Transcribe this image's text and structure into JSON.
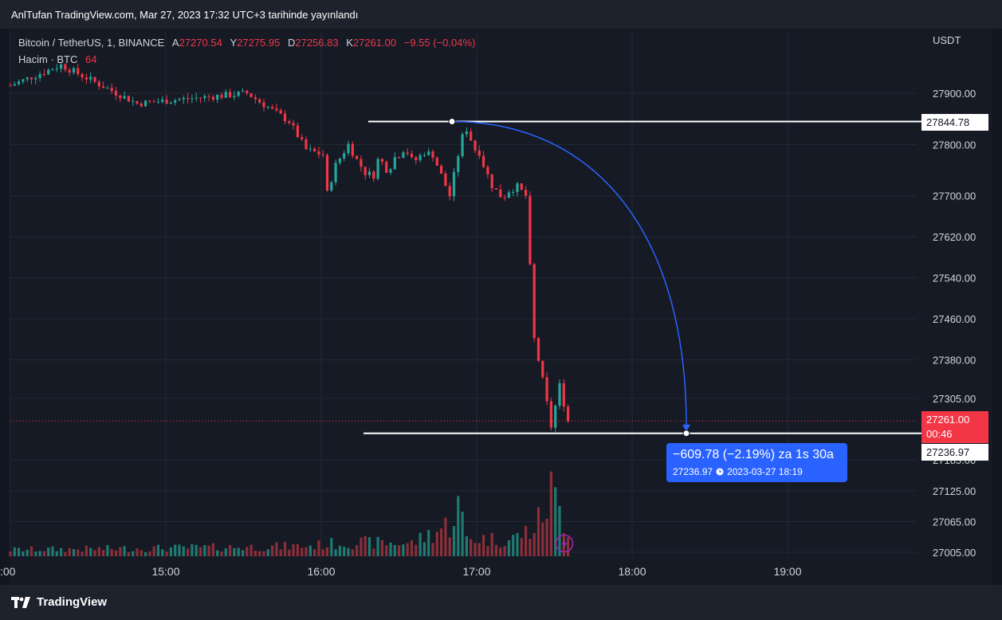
{
  "header": {
    "text": "AnlTufan TradingView.com, Mar 27, 2023 17:32 UTC+3 tarihinde yayınlandı"
  },
  "legend": {
    "symbol": "Bitcoin / TetherUS, 1, BINANCE",
    "open_label": "A",
    "open": "27270.54",
    "high_label": "Y",
    "high": "27275.95",
    "low_label": "D",
    "low": "27256.83",
    "close_label": "K",
    "close": "27261.00",
    "change": "−9.55 (−0.04%)",
    "volume_label": "Hacim · BTC",
    "volume": "64"
  },
  "axis": {
    "currency": "USDT"
  },
  "price_tags": {
    "high_line": "27844.78",
    "last_price": "27261.00",
    "countdown": "00:46",
    "low_line": "27236.97"
  },
  "measure": {
    "main": "−609.78 (−2.19%) za 1s 30a",
    "price": "27236.97",
    "datetime": "2023-03-27  18:19"
  },
  "footer": {
    "brand": "TradingView"
  },
  "colors": {
    "up": "#26a69a",
    "down": "#f23645",
    "arrow": "#2962ff",
    "vol_up": "#1f7a72",
    "vol_down": "#8c2f39",
    "grid": "#242837"
  },
  "icons": [
    "tradingview-logo-icon",
    "clock-icon",
    "flash-icon"
  ],
  "chart_data": {
    "type": "candlestick",
    "symbol": "Bitcoin / TetherUS",
    "interval": "1",
    "exchange": "BINANCE",
    "y_unit": "USDT",
    "x_ticks": [
      ":00",
      "15:00",
      "16:00",
      "17:00",
      "18:00",
      "19:00"
    ],
    "y_ticks": [
      27900.0,
      27800.0,
      27700.0,
      27620.0,
      27540.0,
      27460.0,
      27380.0,
      27305.0,
      27185.0,
      27125.0,
      27065.0,
      27005.0
    ],
    "ylim": [
      26996,
      28010
    ],
    "close_path_minutes": [
      0,
      12,
      30,
      56,
      66,
      70,
      74,
      75,
      77,
      80,
      82,
      84,
      86,
      87,
      88,
      89,
      90,
      91,
      92,
      93,
      94,
      95,
      96,
      98,
      100,
      104,
      106,
      107,
      108,
      110,
      111,
      112,
      114,
      116,
      117,
      118,
      120,
      122,
      124,
      126,
      128,
      130,
      132
    ],
    "close_path": [
      27915,
      27955,
      27880,
      27900,
      27845,
      27790,
      27780,
      27705,
      27760,
      27800,
      27770,
      27745,
      27740,
      27770,
      27765,
      27752,
      27758,
      27775,
      27780,
      27790,
      27785,
      27770,
      27770,
      27785,
      27780,
      27700,
      27780,
      27815,
      27830,
      27790,
      27785,
      27760,
      27720,
      27700,
      27700,
      27710,
      27718,
      27700,
      27420,
      27340,
      27250,
      27330,
      27261
    ],
    "volume_ylim": [
      0,
      260
    ],
    "volume_path_minutes": [
      0,
      40,
      70,
      80,
      95,
      104,
      106,
      108,
      118,
      124,
      126,
      128,
      130,
      132
    ],
    "volume_path": [
      14,
      18,
      22,
      30,
      28,
      70,
      110,
      40,
      35,
      60,
      90,
      140,
      100,
      64
    ],
    "annotations": {
      "high_level": 27844.78,
      "low_level": 27236.97,
      "projection_change": "−609.78 (−2.19%)",
      "projection_time": "2023-03-27 18:19"
    }
  }
}
